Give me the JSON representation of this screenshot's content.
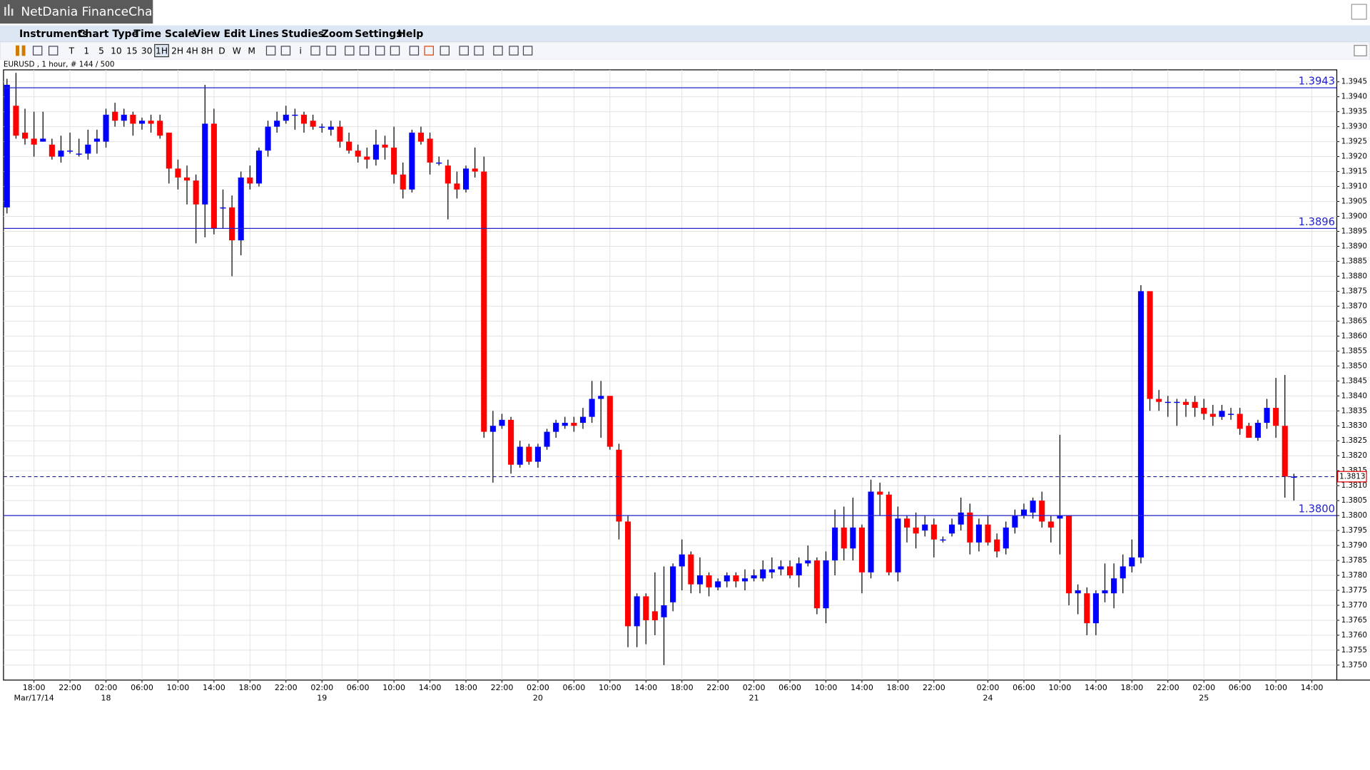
{
  "window_title": "NetDania FinanceChart",
  "menu": [
    "Instruments",
    "Chart Type",
    "Time Scale",
    "View",
    "Edit",
    "Lines",
    "Studies",
    "Zoom",
    "Settings",
    "Help"
  ],
  "toolbar": [
    "T",
    "1",
    "5",
    "10",
    "15",
    "30",
    "1H",
    "2H",
    "4H",
    "8H",
    "D",
    "W",
    "M",
    "i"
  ],
  "chart_data": {
    "type": "candlestick",
    "instrument_info": "EURUSD , 1 hour, # 144 / 500",
    "up_color": "#0000ff",
    "down_color": "#ff0000",
    "level_color": "#2222cc",
    "grid": true,
    "categories": [
      null,
      null,
      null,
      "18:00",
      null,
      null,
      null,
      "22:00",
      null,
      null,
      null,
      "02:00",
      null,
      null,
      null,
      "06:00",
      null,
      null,
      null,
      "10:00",
      null,
      null,
      null,
      "14:00",
      null,
      null,
      null,
      "18:00",
      null,
      null,
      null,
      "22:00",
      null,
      null,
      null,
      "02:00",
      null,
      null,
      null,
      "06:00",
      null,
      null,
      null,
      "10:00",
      null,
      null,
      null,
      "14:00",
      null,
      null,
      null,
      "18:00",
      null,
      null,
      null,
      "22:00",
      null,
      null,
      null,
      "02:00",
      null,
      null,
      null,
      "06:00",
      null,
      null,
      null,
      "10:00",
      null,
      null,
      null,
      "14:00",
      null,
      null,
      null,
      "18:00",
      null,
      null,
      null,
      "22:00",
      null,
      null,
      null,
      "02:00",
      null,
      null,
      null,
      "06:00",
      null,
      null,
      null,
      "10:00",
      null,
      null,
      null,
      "14:00",
      null,
      null,
      null,
      "18:00",
      null,
      null,
      null,
      "22:00",
      null,
      null,
      null,
      null,
      null,
      "02:00",
      null,
      null,
      null,
      "06:00",
      null,
      null,
      null,
      "10:00",
      null,
      null,
      null,
      "14:00",
      null,
      null,
      null,
      "18:00",
      null,
      null,
      null,
      "22:00",
      null,
      null,
      null,
      "02:00",
      null,
      null,
      null,
      "06:00",
      null,
      null,
      null,
      "10:00",
      null,
      null,
      null,
      "14:00"
    ],
    "dates": [
      null,
      null,
      null,
      "Mar/17/14",
      null,
      null,
      null,
      null,
      null,
      null,
      null,
      "18",
      null,
      null,
      null,
      null,
      null,
      null,
      null,
      null,
      null,
      null,
      null,
      null,
      null,
      null,
      null,
      null,
      null,
      null,
      null,
      null,
      null,
      null,
      null,
      "19",
      null,
      null,
      null,
      null,
      null,
      null,
      null,
      null,
      null,
      null,
      null,
      null,
      null,
      null,
      null,
      null,
      null,
      null,
      null,
      null,
      null,
      null,
      null,
      "20",
      null,
      null,
      null,
      null,
      null,
      null,
      null,
      null,
      null,
      null,
      null,
      null,
      null,
      null,
      null,
      null,
      null,
      null,
      null,
      null,
      null,
      null,
      null,
      "21",
      null,
      null,
      null,
      null,
      null,
      null,
      null,
      null,
      null,
      null,
      null,
      null,
      null,
      null,
      null,
      null,
      null,
      null,
      null,
      null,
      null,
      null,
      null,
      null,
      null,
      "24",
      null,
      null,
      null,
      null,
      null,
      null,
      null,
      null,
      null,
      null,
      null,
      null,
      null,
      null,
      null,
      null,
      null,
      null,
      null,
      null,
      null,
      null,
      null,
      "25",
      null,
      null,
      null,
      null,
      null,
      null,
      null,
      null,
      null,
      null,
      null,
      null
    ],
    "open": [
      1.3903,
      1.3937,
      1.3928,
      1.3926,
      1.3925,
      1.3924,
      1.392,
      1.3922,
      1.3921,
      1.3921,
      1.3925,
      1.3925,
      1.3935,
      1.3932,
      1.3934,
      1.3931,
      1.3932,
      1.3932,
      1.3928,
      1.3916,
      1.3913,
      1.3912,
      1.3904,
      1.3931,
      1.3903,
      1.3903,
      1.3892,
      1.3913,
      1.3911,
      1.3922,
      1.393,
      1.3932,
      1.3934,
      1.3934,
      1.3932,
      1.393,
      1.3929,
      1.393,
      1.3925,
      1.3922,
      1.392,
      1.3919,
      1.3924,
      1.3923,
      1.3914,
      1.3909,
      1.3928,
      1.3926,
      1.3918,
      1.3917,
      1.3911,
      1.3909,
      1.3916,
      1.3915,
      1.3828,
      1.383,
      1.3832,
      1.3817,
      1.3823,
      1.3818,
      1.3823,
      1.3828,
      1.383,
      1.3831,
      1.3831,
      1.3833,
      1.3839,
      1.384,
      1.3822,
      1.3798,
      1.3763,
      1.3773,
      1.3768,
      1.3766,
      1.3771,
      1.3783,
      1.3787,
      1.3777,
      1.378,
      1.3776,
      1.3778,
      1.378,
      1.3778,
      1.3779,
      1.3779,
      1.3781,
      1.3782,
      1.3783,
      1.378,
      1.3784,
      1.3785,
      1.3769,
      1.3785,
      1.3796,
      1.3789,
      1.3796,
      1.3781,
      1.3808,
      1.3807,
      1.3781,
      1.3799,
      1.3796,
      1.3795,
      1.3797,
      1.3792,
      1.3794,
      1.3797,
      1.3801,
      1.3791,
      1.3797,
      1.3792,
      1.3789,
      1.3796,
      1.38,
      1.3801,
      1.3805,
      1.3798,
      1.3799,
      1.38,
      1.3774,
      1.3774,
      1.3764,
      1.3774,
      1.3774,
      1.3779,
      1.3783,
      1.3786,
      1.3875,
      1.3839,
      1.3838,
      1.3838,
      1.3838,
      1.3838,
      1.3836,
      1.3834,
      1.3833,
      1.3834,
      1.3834,
      1.383,
      1.3826,
      1.3831,
      1.3836,
      1.383,
      1.3813,
      null,
      null
    ],
    "high": [
      1.3946,
      1.3948,
      1.3936,
      1.3935,
      1.3935,
      1.3926,
      1.3927,
      1.3928,
      1.3926,
      1.3929,
      1.3929,
      1.3936,
      1.3938,
      1.3936,
      1.3935,
      1.3933,
      1.3934,
      1.3934,
      1.3928,
      1.3919,
      1.3917,
      1.3914,
      1.3944,
      1.3936,
      1.3909,
      1.3907,
      1.3915,
      1.3917,
      1.3923,
      1.3932,
      1.3935,
      1.3937,
      1.3936,
      1.3935,
      1.3934,
      1.3931,
      1.3932,
      1.3932,
      1.3928,
      1.3924,
      1.3923,
      1.3929,
      1.3927,
      1.393,
      1.3918,
      1.3929,
      1.393,
      1.3928,
      1.392,
      1.3919,
      1.3915,
      1.3917,
      1.3923,
      1.392,
      1.3835,
      1.3834,
      1.3833,
      1.3825,
      1.3824,
      1.3824,
      1.3829,
      1.3832,
      1.3833,
      1.3833,
      1.3836,
      1.3845,
      1.3845,
      1.384,
      1.3824,
      1.38,
      1.3774,
      1.3774,
      1.3781,
      1.3783,
      1.3784,
      1.3792,
      1.3788,
      1.3786,
      1.3781,
      1.3779,
      1.3781,
      1.3781,
      1.3782,
      1.3782,
      1.3785,
      1.3786,
      1.3785,
      1.3785,
      1.3786,
      1.379,
      1.3786,
      1.3788,
      1.3802,
      1.3803,
      1.3806,
      1.3797,
      1.3812,
      1.3811,
      1.3808,
      1.3803,
      1.38,
      1.3801,
      1.38,
      1.3799,
      1.3793,
      1.3799,
      1.3806,
      1.3804,
      1.3799,
      1.38,
      1.3794,
      1.3798,
      1.3802,
      1.3804,
      1.3806,
      1.3808,
      1.38,
      1.3827,
      1.38,
      1.3777,
      1.3776,
      1.3775,
      1.3784,
      1.3784,
      1.3787,
      1.3792,
      1.3877,
      1.3875,
      1.3842,
      1.384,
      1.3839,
      1.3839,
      1.384,
      1.3839,
      1.3837,
      1.3837,
      1.3836,
      1.3836,
      1.3831,
      1.3832,
      1.3839,
      1.3846,
      1.3847,
      1.3814,
      null,
      null
    ],
    "low": [
      1.3901,
      1.3926,
      1.3924,
      1.392,
      1.3925,
      1.3919,
      1.3918,
      1.3921,
      1.392,
      1.3919,
      1.3921,
      1.3923,
      1.393,
      1.393,
      1.3927,
      1.3929,
      1.3928,
      1.3926,
      1.3911,
      1.3909,
      1.3904,
      1.3891,
      1.3893,
      1.3894,
      1.3896,
      1.388,
      1.3887,
      1.3909,
      1.391,
      1.392,
      1.3928,
      1.3931,
      1.3929,
      1.3928,
      1.3929,
      1.3928,
      1.3927,
      1.3923,
      1.3921,
      1.3918,
      1.3916,
      1.3917,
      1.3919,
      1.3911,
      1.3906,
      1.3908,
      1.3924,
      1.3914,
      1.3917,
      1.3899,
      1.3906,
      1.3908,
      1.3913,
      1.3826,
      1.3811,
      1.3829,
      1.3814,
      1.3816,
      1.3817,
      1.3816,
      1.3822,
      1.3826,
      1.3829,
      1.3828,
      1.3829,
      1.3831,
      1.3826,
      1.3822,
      1.3792,
      1.3756,
      1.3756,
      1.3757,
      1.376,
      1.375,
      1.3768,
      1.3775,
      1.3774,
      1.3774,
      1.3773,
      1.3775,
      1.3776,
      1.3776,
      1.3775,
      1.3778,
      1.3778,
      1.3779,
      1.378,
      1.3779,
      1.3776,
      1.3783,
      1.3767,
      1.3764,
      1.378,
      1.3785,
      1.3785,
      1.3774,
      1.3779,
      1.38,
      1.378,
      1.3778,
      1.3791,
      1.3789,
      1.3793,
      1.3786,
      1.3791,
      1.3793,
      1.3795,
      1.3787,
      1.3788,
      1.379,
      1.3786,
      1.3787,
      1.3794,
      1.3799,
      1.3799,
      1.3796,
      1.3791,
      1.3787,
      1.377,
      1.3767,
      1.376,
      1.376,
      1.3771,
      1.3769,
      1.3774,
      1.3781,
      1.3784,
      1.3835,
      1.3835,
      1.3833,
      1.383,
      1.3833,
      1.3833,
      1.3832,
      1.383,
      1.3832,
      1.3832,
      1.3827,
      1.3826,
      1.3825,
      1.3829,
      1.3826,
      1.3806,
      1.3805,
      null,
      null
    ],
    "close": [
      1.3944,
      1.3927,
      1.3926,
      1.3924,
      1.3926,
      1.392,
      1.3922,
      1.3922,
      1.3921,
      1.3924,
      1.3926,
      1.3934,
      1.3932,
      1.3934,
      1.3931,
      1.3932,
      1.3931,
      1.3927,
      1.3916,
      1.3913,
      1.3912,
      1.3904,
      1.3931,
      1.3896,
      1.3903,
      1.3892,
      1.3913,
      1.3911,
      1.3922,
      1.393,
      1.3932,
      1.3934,
      1.3934,
      1.3931,
      1.393,
      1.393,
      1.393,
      1.3925,
      1.3922,
      1.392,
      1.3919,
      1.3924,
      1.3923,
      1.3914,
      1.3909,
      1.3928,
      1.3925,
      1.3918,
      1.3918,
      1.3911,
      1.3909,
      1.3916,
      1.3915,
      1.3828,
      1.383,
      1.3832,
      1.3817,
      1.3823,
      1.3818,
      1.3823,
      1.3828,
      1.3831,
      1.3831,
      1.383,
      1.3833,
      1.3839,
      1.384,
      1.3823,
      1.3798,
      1.3763,
      1.3773,
      1.3765,
      1.3765,
      1.377,
      1.3783,
      1.3787,
      1.3777,
      1.378,
      1.3776,
      1.3778,
      1.378,
      1.3778,
      1.3779,
      1.378,
      1.3782,
      1.3782,
      1.3783,
      1.378,
      1.3784,
      1.3785,
      1.3769,
      1.3785,
      1.3796,
      1.3789,
      1.3796,
      1.3781,
      1.3808,
      1.3807,
      1.3781,
      1.3799,
      1.3796,
      1.3794,
      1.3797,
      1.3792,
      1.3792,
      1.3797,
      1.3801,
      1.3791,
      1.3797,
      1.3791,
      1.3788,
      1.3796,
      1.38,
      1.3802,
      1.3805,
      1.3798,
      1.3796,
      1.38,
      1.3774,
      1.3775,
      1.3764,
      1.3774,
      1.3775,
      1.3779,
      1.3783,
      1.3786,
      1.3875,
      1.3839,
      1.3838,
      1.3838,
      1.3838,
      1.3837,
      1.3836,
      1.3834,
      1.3833,
      1.3835,
      1.3834,
      1.3829,
      1.3826,
      1.3831,
      1.3836,
      1.383,
      1.3813,
      1.3813,
      null,
      null
    ],
    "ylim": [
      1.3745,
      1.3949
    ],
    "yticks": [
      {
        "value": 1.375,
        "label": "1.3750"
      },
      1.3755,
      {
        "value": 1.376,
        "label": "1.3760"
      },
      1.3765,
      {
        "value": 1.377,
        "label": "1.3770"
      },
      1.3775,
      {
        "value": 1.378,
        "label": "1.3780"
      },
      1.3785,
      {
        "value": 1.379,
        "label": "1.3790"
      },
      1.3795,
      {
        "value": 1.38,
        "label": "1.3800"
      },
      1.3805,
      {
        "value": 1.381,
        "label": "1.3810"
      },
      1.3815,
      {
        "value": 1.382,
        "label": "1.3820"
      },
      1.3825,
      {
        "value": 1.383,
        "label": "1.3830"
      },
      1.3835,
      {
        "value": 1.384,
        "label": "1.3840"
      },
      1.3845,
      {
        "value": 1.385,
        "label": "1.3850"
      },
      1.3855,
      {
        "value": 1.386,
        "label": "1.3860"
      },
      1.3865,
      {
        "value": 1.387,
        "label": "1.3870"
      },
      1.3875,
      {
        "value": 1.388,
        "label": "1.3880"
      },
      1.3885,
      {
        "value": 1.389,
        "label": "1.3890"
      },
      1.3895,
      {
        "value": 1.39,
        "label": "1.3900"
      },
      1.3905,
      {
        "value": 1.391,
        "label": "1.3910"
      },
      1.3915,
      {
        "value": 1.392,
        "label": "1.3920"
      },
      1.3925,
      {
        "value": 1.393,
        "label": "1.3930"
      },
      1.3935,
      {
        "value": 1.394,
        "label": "1.3940"
      },
      1.3945
    ],
    "levels": [
      1.3943,
      1.3896,
      {
        "value": 1.38,
        "label": "1.3800"
      }
    ],
    "last_price": 1.3813
  }
}
